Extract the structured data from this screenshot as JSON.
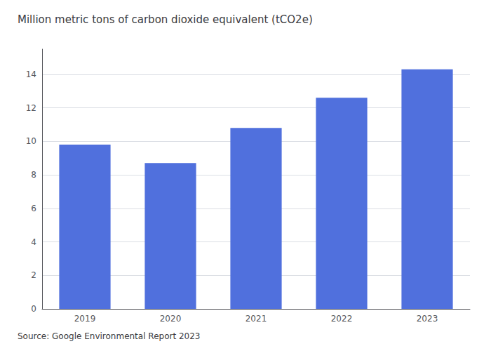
{
  "chart_data": {
    "type": "bar",
    "title": "Million metric tons of carbon dioxide equivalent (tCO2e)",
    "annotation": "Source: Google Environmental Report 2023",
    "categories": [
      "2019",
      "2020",
      "2021",
      "2022",
      "2023"
    ],
    "values": [
      9.8,
      8.7,
      10.8,
      12.6,
      14.3
    ],
    "ylim": [
      0,
      15.5
    ],
    "yticks": [
      0,
      2,
      4,
      6,
      8,
      10,
      12,
      14
    ],
    "grid": true
  }
}
